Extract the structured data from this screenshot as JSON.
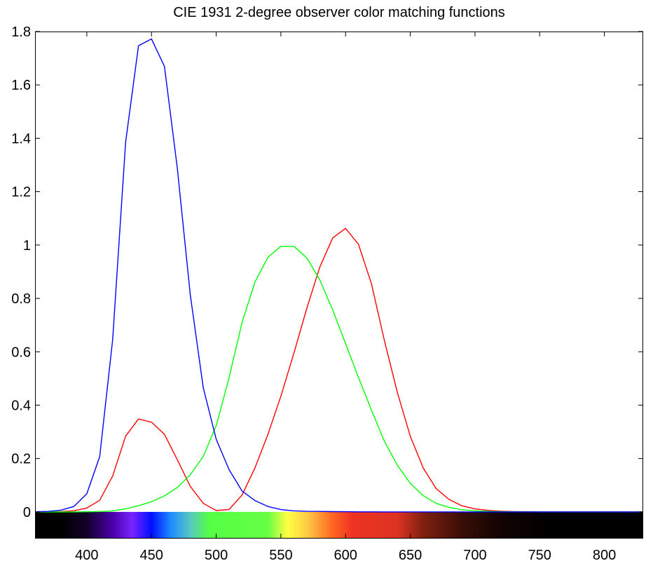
{
  "chart_data": {
    "type": "line",
    "title": "CIE 1931 2-degree observer color matching functions",
    "xlabel": "",
    "ylabel": "",
    "xlim": [
      360,
      830
    ],
    "ylim": [
      -0.1,
      1.8
    ],
    "x_ticks": [
      400,
      450,
      500,
      550,
      600,
      650,
      700,
      750,
      800
    ],
    "x_tick_labels": [
      "400",
      "450",
      "500",
      "550",
      "600",
      "650",
      "700",
      "750",
      "800"
    ],
    "y_ticks": [
      0,
      0.2,
      0.4,
      0.6,
      0.8,
      1,
      1.2,
      1.4,
      1.6,
      1.8
    ],
    "y_tick_labels": [
      "0",
      "0.2",
      "0.4",
      "0.6",
      "0.8",
      "1",
      "1.2",
      "1.4",
      "1.6",
      "1.8"
    ],
    "grid": false,
    "legend": "none",
    "x": [
      360,
      370,
      380,
      390,
      400,
      410,
      420,
      430,
      440,
      450,
      460,
      470,
      480,
      490,
      500,
      510,
      520,
      530,
      540,
      550,
      560,
      570,
      580,
      590,
      600,
      610,
      620,
      630,
      640,
      650,
      660,
      670,
      680,
      690,
      700,
      710,
      720,
      730,
      740,
      750,
      760,
      770,
      780,
      790,
      800,
      810,
      820,
      830
    ],
    "series": [
      {
        "color": "#ff0000",
        "values": [
          0.0001,
          0.0004,
          0.0014,
          0.0042,
          0.0143,
          0.0435,
          0.1344,
          0.2839,
          0.3483,
          0.3362,
          0.2908,
          0.1954,
          0.0956,
          0.032,
          0.0049,
          0.0093,
          0.0633,
          0.1655,
          0.2904,
          0.4334,
          0.5945,
          0.7621,
          0.9163,
          1.0263,
          1.0622,
          1.0026,
          0.8544,
          0.6424,
          0.4479,
          0.2835,
          0.1649,
          0.0874,
          0.0468,
          0.0227,
          0.0114,
          0.0058,
          0.0029,
          0.0014,
          0.0007,
          0.0003,
          0.0002,
          0.0001,
          0.0,
          0.0,
          0.0,
          0.0,
          0.0,
          0.0
        ]
      },
      {
        "color": "#00ff00",
        "values": [
          0.0,
          0.0,
          0.0,
          0.0001,
          0.0004,
          0.0012,
          0.004,
          0.0116,
          0.023,
          0.038,
          0.06,
          0.091,
          0.139,
          0.208,
          0.323,
          0.503,
          0.71,
          0.862,
          0.954,
          0.995,
          0.995,
          0.952,
          0.87,
          0.757,
          0.631,
          0.503,
          0.381,
          0.265,
          0.175,
          0.107,
          0.061,
          0.032,
          0.017,
          0.0082,
          0.0041,
          0.0021,
          0.001,
          0.0005,
          0.0003,
          0.0001,
          0.0001,
          0.0,
          0.0,
          0.0,
          0.0,
          0.0,
          0.0,
          0.0
        ]
      },
      {
        "color": "#0000ff",
        "values": [
          0.0006,
          0.0019,
          0.0065,
          0.0201,
          0.0679,
          0.2074,
          0.6456,
          1.3856,
          1.7471,
          1.7721,
          1.6692,
          1.2876,
          0.813,
          0.4652,
          0.272,
          0.1582,
          0.0782,
          0.0422,
          0.0203,
          0.0087,
          0.0039,
          0.0021,
          0.0017,
          0.0011,
          0.0008,
          0.0003,
          0.0002,
          0.0,
          0.0,
          0.0,
          0.0,
          0.0,
          0.0,
          0.0,
          0.0,
          0.0,
          0.0,
          0.0,
          0.0,
          0.0,
          0.0,
          0.0,
          0.0,
          0.0,
          0.0,
          0.0,
          0.0,
          0.0
        ]
      }
    ],
    "spectrum_stops": [
      {
        "x": 360,
        "color": "#000000"
      },
      {
        "x": 380,
        "color": "#000000"
      },
      {
        "x": 400,
        "color": "#14002a"
      },
      {
        "x": 420,
        "color": "#4a00a8"
      },
      {
        "x": 435,
        "color": "#7a22ff"
      },
      {
        "x": 450,
        "color": "#0010ff"
      },
      {
        "x": 465,
        "color": "#1f8cff"
      },
      {
        "x": 480,
        "color": "#55c8c0"
      },
      {
        "x": 495,
        "color": "#55ff44"
      },
      {
        "x": 540,
        "color": "#66ff44"
      },
      {
        "x": 555,
        "color": "#ffff44"
      },
      {
        "x": 570,
        "color": "#ffcc44"
      },
      {
        "x": 590,
        "color": "#ff6622"
      },
      {
        "x": 605,
        "color": "#ee3322"
      },
      {
        "x": 640,
        "color": "#dd3322"
      },
      {
        "x": 660,
        "color": "#802010"
      },
      {
        "x": 690,
        "color": "#3a0e06"
      },
      {
        "x": 720,
        "color": "#120302"
      },
      {
        "x": 760,
        "color": "#000000"
      },
      {
        "x": 830,
        "color": "#000000"
      }
    ],
    "axes_color": "#000000",
    "background_color": "#ffffff"
  }
}
